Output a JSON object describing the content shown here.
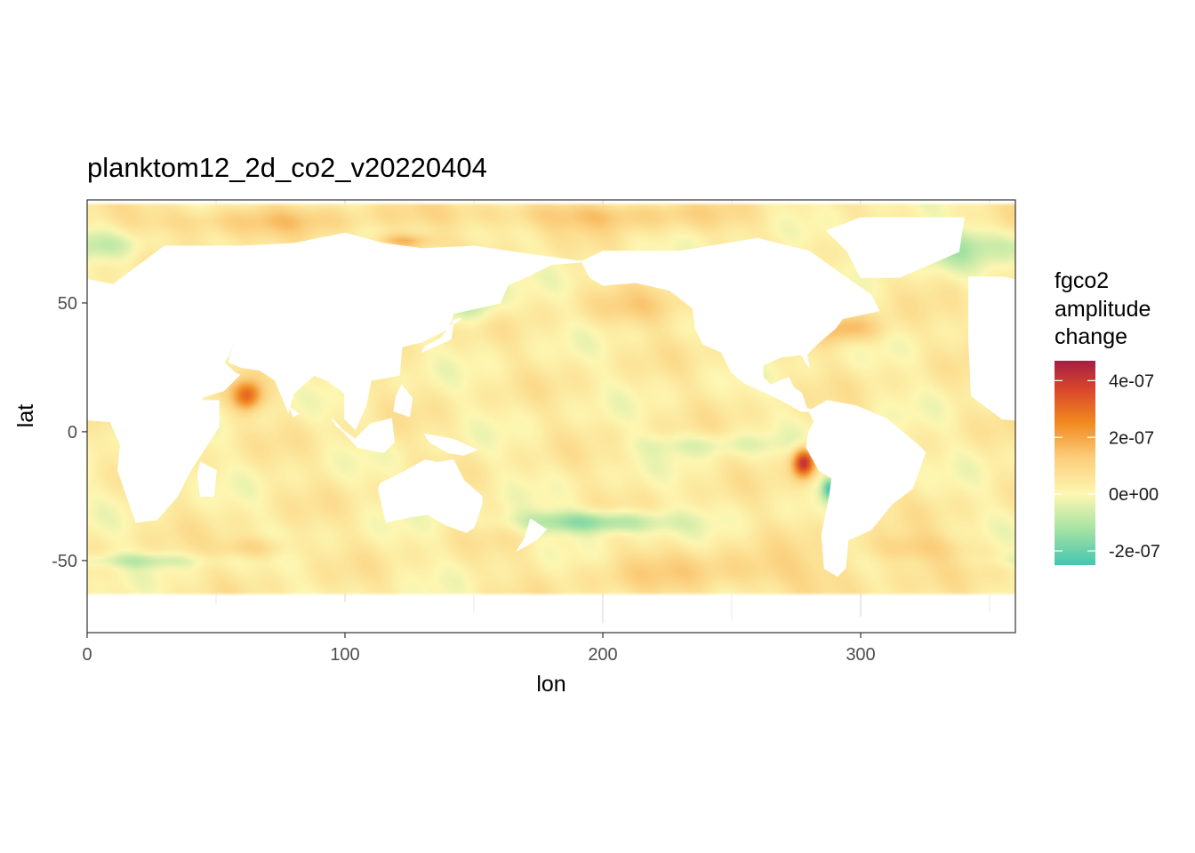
{
  "chart_data": {
    "type": "heatmap",
    "title": "planktom12_2d_co2_v20220404",
    "xlabel": "lon",
    "ylabel": "lat",
    "xlim": [
      0,
      360
    ],
    "ylim": [
      -78,
      90
    ],
    "x_ticks": [
      {
        "value": 0,
        "label": "0"
      },
      {
        "value": 100,
        "label": "100"
      },
      {
        "value": 200,
        "label": "200"
      },
      {
        "value": 300,
        "label": "300"
      }
    ],
    "y_ticks": [
      {
        "value": 50,
        "label": "50"
      },
      {
        "value": 0,
        "label": "0"
      },
      {
        "value": -50,
        "label": "-50"
      }
    ],
    "grid": true,
    "legend": {
      "title_lines": [
        "fgco2",
        "amplitude",
        "change"
      ],
      "position": "right",
      "range": [
        -2.5e-07,
        4.7e-07
      ],
      "ticks": [
        {
          "value": 4e-07,
          "label": "4e-07"
        },
        {
          "value": 2e-07,
          "label": "2e-07"
        },
        {
          "value": 0,
          "label": "0e+00"
        },
        {
          "value": -2e-07,
          "label": "-2e-07"
        }
      ],
      "colors": [
        {
          "value": -2.5e-07,
          "color": "#45c5b1"
        },
        {
          "value": -1.2e-07,
          "color": "#a8e3a3"
        },
        {
          "value": 0,
          "color": "#fdf7b2"
        },
        {
          "value": 1.3e-07,
          "color": "#fbcd7a"
        },
        {
          "value": 2.5e-07,
          "color": "#f18b1f"
        },
        {
          "value": 3.7e-07,
          "color": "#d9462c"
        },
        {
          "value": 4.7e-07,
          "color": "#a51e44"
        }
      ]
    },
    "land_color": "#ffffff",
    "panel_border": "#333333",
    "gridline_color": "#ebebeb"
  }
}
